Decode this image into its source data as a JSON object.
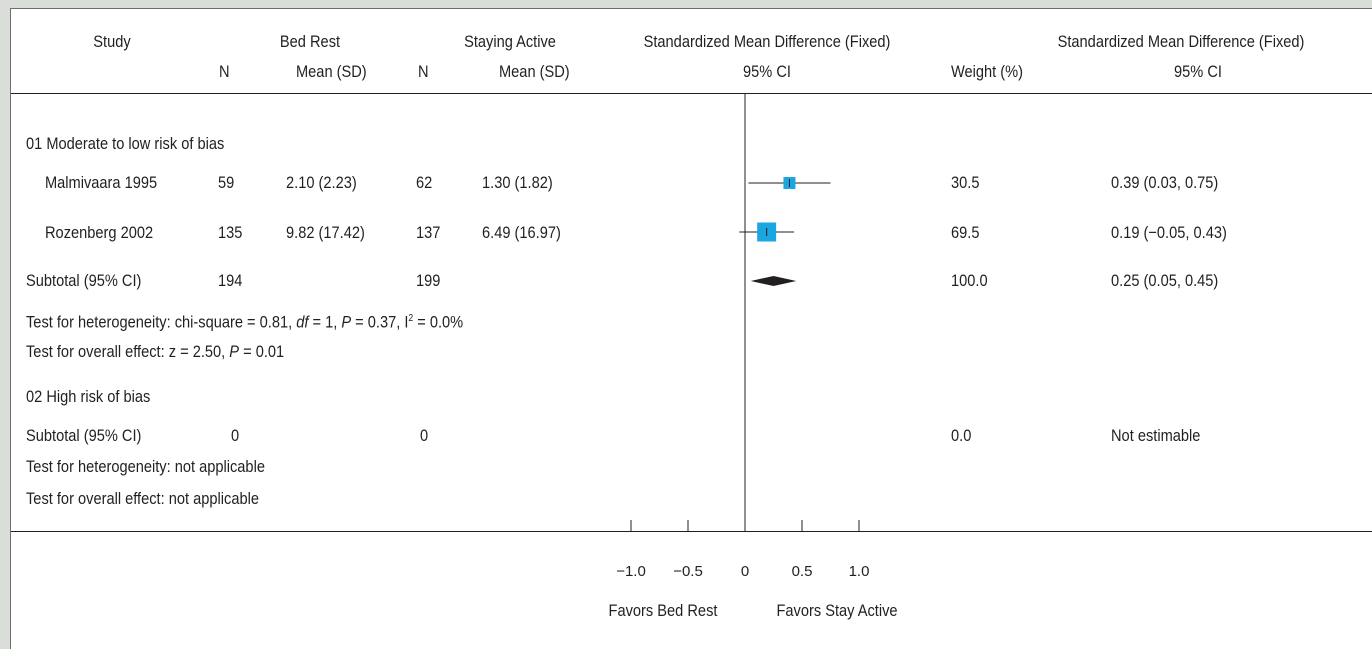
{
  "chart_data": {
    "type": "forest",
    "columns": {
      "study": "Study",
      "group1": "Bed Rest",
      "group2": "Staying Active",
      "n": "N",
      "mean_sd": "Mean (SD)",
      "plot_header": "Standardized Mean Difference (Fixed)",
      "plot_subheader": "95% CI",
      "weight": "Weight (%)",
      "ci_header": "Standardized Mean Difference (Fixed)",
      "ci_subheader": "95% CI"
    },
    "groups": [
      {
        "label": "01 Moderate to low risk of bias",
        "studies": [
          {
            "name": "Malmivaara 1995",
            "n1": "59",
            "mean1": "2.10 (2.23)",
            "n2": "62",
            "mean2": "1.30 (1.82)",
            "smd": 0.39,
            "lower": 0.03,
            "upper": 0.75,
            "weight": "30.5",
            "ci": "0.39 (0.03, 0.75)"
          },
          {
            "name": "Rozenberg 2002",
            "n1": "135",
            "mean1": "9.82 (17.42)",
            "n2": "137",
            "mean2": "6.49 (16.97)",
            "smd": 0.19,
            "lower": -0.05,
            "upper": 0.43,
            "weight": "69.5",
            "ci": "0.19 (−0.05, 0.43)"
          }
        ],
        "subtotal": {
          "label": "Subtotal (95% CI)",
          "n1": "194",
          "n2": "199",
          "smd": 0.25,
          "lower": 0.05,
          "upper": 0.45,
          "weight": "100.0",
          "ci": "0.25 (0.05, 0.45)"
        },
        "heterogeneity": {
          "prefix": "Test for heterogeneity: chi-square = 0.81, ",
          "df_label": "df",
          "df_text": " = 1, ",
          "p_label": "P",
          "p_text": " = 0.37, I",
          "i2_sup": "2",
          "i2_text": " = 0.0%"
        },
        "overall": {
          "prefix": "Test for overall effect: z = 2.50, ",
          "p_label": "P",
          "p_text": " = 0.01"
        }
      },
      {
        "label": "02 High risk of bias",
        "studies": [],
        "subtotal": {
          "label": "Subtotal (95% CI)",
          "n1": "0",
          "n2": "0",
          "weight": "0.0",
          "ci": "Not estimable"
        },
        "heterogeneity_text": "Test for heterogeneity: not applicable",
        "overall_text": "Test for overall effect: not applicable"
      }
    ],
    "x_axis": {
      "ticks": [
        -1.0,
        -0.5,
        0,
        0.5,
        1.0
      ],
      "tick_labels": [
        "−1.0",
        "−0.5",
        "0",
        "0.5",
        "1.0"
      ],
      "xlim": [
        -1.0,
        1.0
      ],
      "left_label": "Favors Bed Rest",
      "right_label": "Favors Stay Active"
    },
    "colors": {
      "marker": "#1ba6e0",
      "line": "#231f20",
      "diamond": "#231f20",
      "background": "#d9ded9"
    }
  }
}
